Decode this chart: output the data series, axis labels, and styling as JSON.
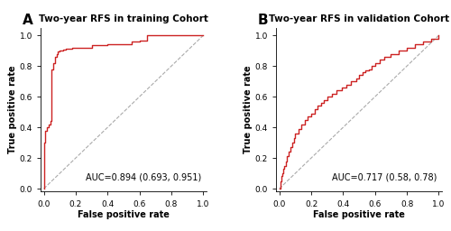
{
  "title_A": "Two-year RFS in training Cohort",
  "title_B": "Two-year RFS in validation Cohort",
  "label_A": "A",
  "label_B": "B",
  "auc_text_A": "AUC=0.894 (0.693, 0.951)",
  "auc_text_B": "AUC=0.717 (0.58, 0.78)",
  "xlabel": "False positive rate",
  "ylabel": "True positive rate",
  "roc_color": "#CC2222",
  "diag_color": "#AAAAAA",
  "bg_color": "#FFFFFF",
  "title_fontsize": 7.5,
  "label_fontsize": 11,
  "axis_label_fontsize": 7,
  "tick_fontsize": 6.5,
  "auc_fontsize": 7,
  "roc_A_fpr": [
    0.0,
    0.0,
    0.01,
    0.01,
    0.02,
    0.02,
    0.03,
    0.03,
    0.04,
    0.04,
    0.05,
    0.05,
    0.06,
    0.06,
    0.07,
    0.07,
    0.08,
    0.08,
    0.09,
    0.09,
    0.1,
    0.1,
    0.12,
    0.12,
    0.14,
    0.14,
    0.18,
    0.18,
    0.3,
    0.3,
    0.4,
    0.4,
    0.55,
    0.55,
    0.6,
    0.6,
    0.65,
    0.65,
    1.0
  ],
  "roc_A_tpr": [
    0.0,
    0.3,
    0.3,
    0.38,
    0.38,
    0.4,
    0.4,
    0.42,
    0.42,
    0.44,
    0.44,
    0.78,
    0.78,
    0.82,
    0.82,
    0.86,
    0.86,
    0.88,
    0.88,
    0.895,
    0.895,
    0.9,
    0.9,
    0.91,
    0.91,
    0.915,
    0.915,
    0.92,
    0.92,
    0.935,
    0.935,
    0.945,
    0.945,
    0.96,
    0.96,
    0.965,
    0.965,
    1.0,
    1.0
  ],
  "roc_B_fpr": [
    0.0,
    0.005,
    0.01,
    0.015,
    0.02,
    0.025,
    0.03,
    0.04,
    0.05,
    0.06,
    0.07,
    0.08,
    0.09,
    0.1,
    0.12,
    0.14,
    0.16,
    0.18,
    0.2,
    0.22,
    0.24,
    0.26,
    0.28,
    0.3,
    0.33,
    0.36,
    0.39,
    0.42,
    0.45,
    0.48,
    0.5,
    0.52,
    0.54,
    0.56,
    0.58,
    0.6,
    0.63,
    0.66,
    0.7,
    0.75,
    0.8,
    0.85,
    0.9,
    0.95,
    1.0
  ],
  "roc_B_tpr": [
    0.0,
    0.02,
    0.05,
    0.08,
    0.1,
    0.13,
    0.15,
    0.18,
    0.21,
    0.24,
    0.27,
    0.3,
    0.33,
    0.36,
    0.39,
    0.42,
    0.45,
    0.47,
    0.49,
    0.52,
    0.54,
    0.56,
    0.58,
    0.6,
    0.62,
    0.64,
    0.66,
    0.68,
    0.7,
    0.72,
    0.74,
    0.76,
    0.77,
    0.78,
    0.8,
    0.82,
    0.84,
    0.86,
    0.88,
    0.9,
    0.92,
    0.94,
    0.96,
    0.98,
    1.0
  ]
}
